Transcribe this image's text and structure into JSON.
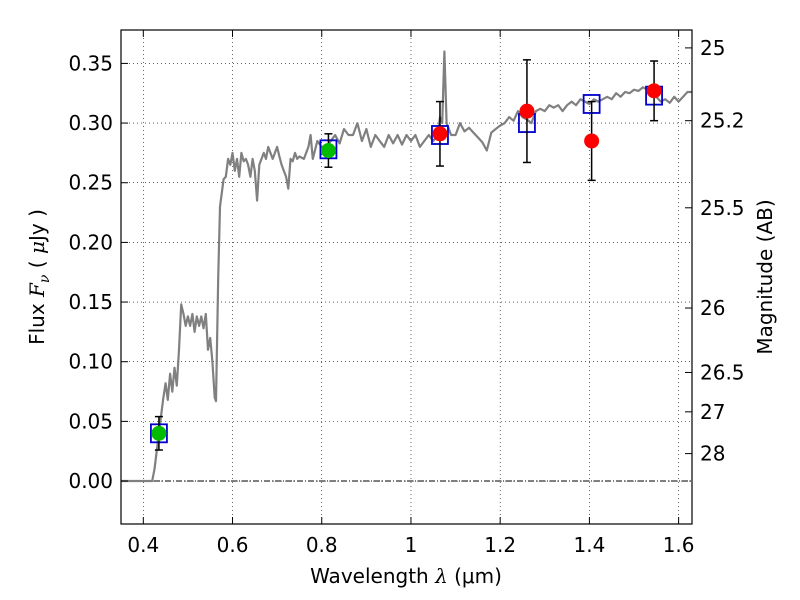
{
  "chart_data": {
    "type": "scatter",
    "xlabel": {
      "prefix": "Wavelength ",
      "symbol": "λ",
      "unit": " (μm)"
    },
    "ylabel": {
      "prefix": "Flux ",
      "symbol": "F",
      "sub": "ν",
      "open": " ( ",
      "mu": "μ",
      "unit": "Jy )"
    },
    "y2label": "Magnitude (AB)",
    "xlim": [
      0.35,
      1.63
    ],
    "ylim": [
      -0.036,
      0.378
    ],
    "grid": true,
    "xticks": [
      {
        "v": 0.4,
        "label": "0.4"
      },
      {
        "v": 0.6,
        "label": "0.6"
      },
      {
        "v": 0.8,
        "label": "0.8"
      },
      {
        "v": 1.0,
        "label": "1"
      },
      {
        "v": 1.2,
        "label": "1.2"
      },
      {
        "v": 1.4,
        "label": "1.4"
      },
      {
        "v": 1.6,
        "label": "1.6"
      }
    ],
    "yticks": [
      {
        "v": 0.0,
        "label": "0.00"
      },
      {
        "v": 0.05,
        "label": "0.05"
      },
      {
        "v": 0.1,
        "label": "0.10"
      },
      {
        "v": 0.15,
        "label": "0.15"
      },
      {
        "v": 0.2,
        "label": "0.20"
      },
      {
        "v": 0.25,
        "label": "0.25"
      },
      {
        "v": 0.3,
        "label": "0.30"
      },
      {
        "v": 0.35,
        "label": "0.35"
      }
    ],
    "y2ticks": [
      {
        "label": "25",
        "flux": 0.363
      },
      {
        "label": "25.2",
        "flux": 0.302
      },
      {
        "label": "25.5",
        "flux": 0.229
      },
      {
        "label": "26",
        "flux": 0.145
      },
      {
        "label": "26.5",
        "flux": 0.091
      },
      {
        "label": "27",
        "flux": 0.058
      },
      {
        "label": "28",
        "flux": 0.023
      }
    ],
    "model_spectrum": {
      "color": "#808080",
      "points": [
        [
          0.35,
          0.0
        ],
        [
          0.41,
          0.0
        ],
        [
          0.42,
          0.0
        ],
        [
          0.425,
          0.01
        ],
        [
          0.43,
          0.025
        ],
        [
          0.435,
          0.04
        ],
        [
          0.44,
          0.055
        ],
        [
          0.445,
          0.07
        ],
        [
          0.45,
          0.082
        ],
        [
          0.455,
          0.068
        ],
        [
          0.46,
          0.09
        ],
        [
          0.465,
          0.075
        ],
        [
          0.47,
          0.095
        ],
        [
          0.475,
          0.08
        ],
        [
          0.48,
          0.11
        ],
        [
          0.485,
          0.148
        ],
        [
          0.49,
          0.14
        ],
        [
          0.495,
          0.13
        ],
        [
          0.5,
          0.138
        ],
        [
          0.505,
          0.13
        ],
        [
          0.51,
          0.14
        ],
        [
          0.515,
          0.125
        ],
        [
          0.52,
          0.138
        ],
        [
          0.525,
          0.13
        ],
        [
          0.53,
          0.138
        ],
        [
          0.535,
          0.128
        ],
        [
          0.54,
          0.14
        ],
        [
          0.545,
          0.11
        ],
        [
          0.55,
          0.12
        ],
        [
          0.555,
          0.1
        ],
        [
          0.56,
          0.07
        ],
        [
          0.563,
          0.067
        ],
        [
          0.568,
          0.17
        ],
        [
          0.572,
          0.23
        ],
        [
          0.58,
          0.253
        ],
        [
          0.585,
          0.255
        ],
        [
          0.59,
          0.27
        ],
        [
          0.595,
          0.265
        ],
        [
          0.6,
          0.275
        ],
        [
          0.605,
          0.26
        ],
        [
          0.61,
          0.27
        ],
        [
          0.615,
          0.255
        ],
        [
          0.62,
          0.275
        ],
        [
          0.625,
          0.268
        ],
        [
          0.63,
          0.27
        ],
        [
          0.635,
          0.265
        ],
        [
          0.64,
          0.255
        ],
        [
          0.645,
          0.27
        ],
        [
          0.65,
          0.26
        ],
        [
          0.655,
          0.235
        ],
        [
          0.66,
          0.265
        ],
        [
          0.665,
          0.27
        ],
        [
          0.67,
          0.275
        ],
        [
          0.675,
          0.27
        ],
        [
          0.68,
          0.28
        ],
        [
          0.69,
          0.27
        ],
        [
          0.7,
          0.28
        ],
        [
          0.705,
          0.272
        ],
        [
          0.71,
          0.265
        ],
        [
          0.715,
          0.26
        ],
        [
          0.72,
          0.255
        ],
        [
          0.725,
          0.245
        ],
        [
          0.73,
          0.27
        ],
        [
          0.735,
          0.268
        ],
        [
          0.74,
          0.275
        ],
        [
          0.745,
          0.27
        ],
        [
          0.75,
          0.272
        ],
        [
          0.76,
          0.27
        ],
        [
          0.77,
          0.28
        ],
        [
          0.775,
          0.29
        ],
        [
          0.78,
          0.27
        ],
        [
          0.79,
          0.285
        ],
        [
          0.8,
          0.28
        ],
        [
          0.81,
          0.28
        ],
        [
          0.82,
          0.285
        ],
        [
          0.83,
          0.29
        ],
        [
          0.84,
          0.283
        ],
        [
          0.85,
          0.295
        ],
        [
          0.86,
          0.29
        ],
        [
          0.87,
          0.29
        ],
        [
          0.88,
          0.3
        ],
        [
          0.89,
          0.285
        ],
        [
          0.9,
          0.295
        ],
        [
          0.91,
          0.28
        ],
        [
          0.92,
          0.29
        ],
        [
          0.93,
          0.285
        ],
        [
          0.94,
          0.28
        ],
        [
          0.95,
          0.29
        ],
        [
          0.96,
          0.283
        ],
        [
          0.97,
          0.29
        ],
        [
          0.98,
          0.282
        ],
        [
          0.99,
          0.29
        ],
        [
          1.0,
          0.285
        ],
        [
          1.01,
          0.29
        ],
        [
          1.02,
          0.28
        ],
        [
          1.03,
          0.285
        ],
        [
          1.04,
          0.29
        ],
        [
          1.05,
          0.285
        ],
        [
          1.06,
          0.29
        ],
        [
          1.065,
          0.305
        ],
        [
          1.07,
          0.3
        ],
        [
          1.075,
          0.36
        ],
        [
          1.08,
          0.3
        ],
        [
          1.09,
          0.29
        ],
        [
          1.1,
          0.29
        ],
        [
          1.11,
          0.3
        ],
        [
          1.12,
          0.293
        ],
        [
          1.13,
          0.296
        ],
        [
          1.14,
          0.292
        ],
        [
          1.15,
          0.288
        ],
        [
          1.16,
          0.284
        ],
        [
          1.17,
          0.277
        ],
        [
          1.18,
          0.292
        ],
        [
          1.19,
          0.295
        ],
        [
          1.2,
          0.298
        ],
        [
          1.21,
          0.3
        ],
        [
          1.22,
          0.305
        ],
        [
          1.23,
          0.302
        ],
        [
          1.24,
          0.31
        ],
        [
          1.25,
          0.305
        ],
        [
          1.26,
          0.303
        ],
        [
          1.27,
          0.3
        ],
        [
          1.28,
          0.31
        ],
        [
          1.29,
          0.312
        ],
        [
          1.3,
          0.31
        ],
        [
          1.31,
          0.315
        ],
        [
          1.32,
          0.313
        ],
        [
          1.33,
          0.315
        ],
        [
          1.34,
          0.31
        ],
        [
          1.35,
          0.315
        ],
        [
          1.36,
          0.318
        ],
        [
          1.37,
          0.315
        ],
        [
          1.38,
          0.32
        ],
        [
          1.39,
          0.318
        ],
        [
          1.4,
          0.316
        ],
        [
          1.41,
          0.32
        ],
        [
          1.42,
          0.318
        ],
        [
          1.43,
          0.32
        ],
        [
          1.44,
          0.322
        ],
        [
          1.45,
          0.32
        ],
        [
          1.46,
          0.325
        ],
        [
          1.47,
          0.322
        ],
        [
          1.48,
          0.326
        ],
        [
          1.49,
          0.325
        ],
        [
          1.5,
          0.328
        ],
        [
          1.51,
          0.327
        ],
        [
          1.52,
          0.33
        ],
        [
          1.53,
          0.328
        ],
        [
          1.54,
          0.33
        ],
        [
          1.55,
          0.322
        ],
        [
          1.56,
          0.318
        ],
        [
          1.57,
          0.32
        ],
        [
          1.58,
          0.317
        ],
        [
          1.59,
          0.322
        ],
        [
          1.6,
          0.318
        ],
        [
          1.61,
          0.322
        ],
        [
          1.62,
          0.326
        ],
        [
          1.63,
          0.326
        ]
      ]
    },
    "model_photometry": {
      "color": "#0000cc",
      "points": [
        [
          0.435,
          0.04
        ],
        [
          0.815,
          0.278
        ],
        [
          1.065,
          0.29
        ],
        [
          1.26,
          0.3
        ],
        [
          1.405,
          0.316
        ],
        [
          1.545,
          0.323
        ]
      ]
    },
    "observed": [
      {
        "x": 0.435,
        "y": 0.04,
        "err": 0.014,
        "color": "#00bb00"
      },
      {
        "x": 0.815,
        "y": 0.277,
        "err": 0.014,
        "color": "#00bb00"
      },
      {
        "x": 1.065,
        "y": 0.291,
        "err": 0.027,
        "color": "#ff0000"
      },
      {
        "x": 1.26,
        "y": 0.31,
        "err": 0.043,
        "color": "#ff0000"
      },
      {
        "x": 1.405,
        "y": 0.285,
        "err": 0.033,
        "color": "#ff0000"
      },
      {
        "x": 1.545,
        "y": 0.327,
        "err": 0.025,
        "color": "#ff0000"
      }
    ]
  }
}
